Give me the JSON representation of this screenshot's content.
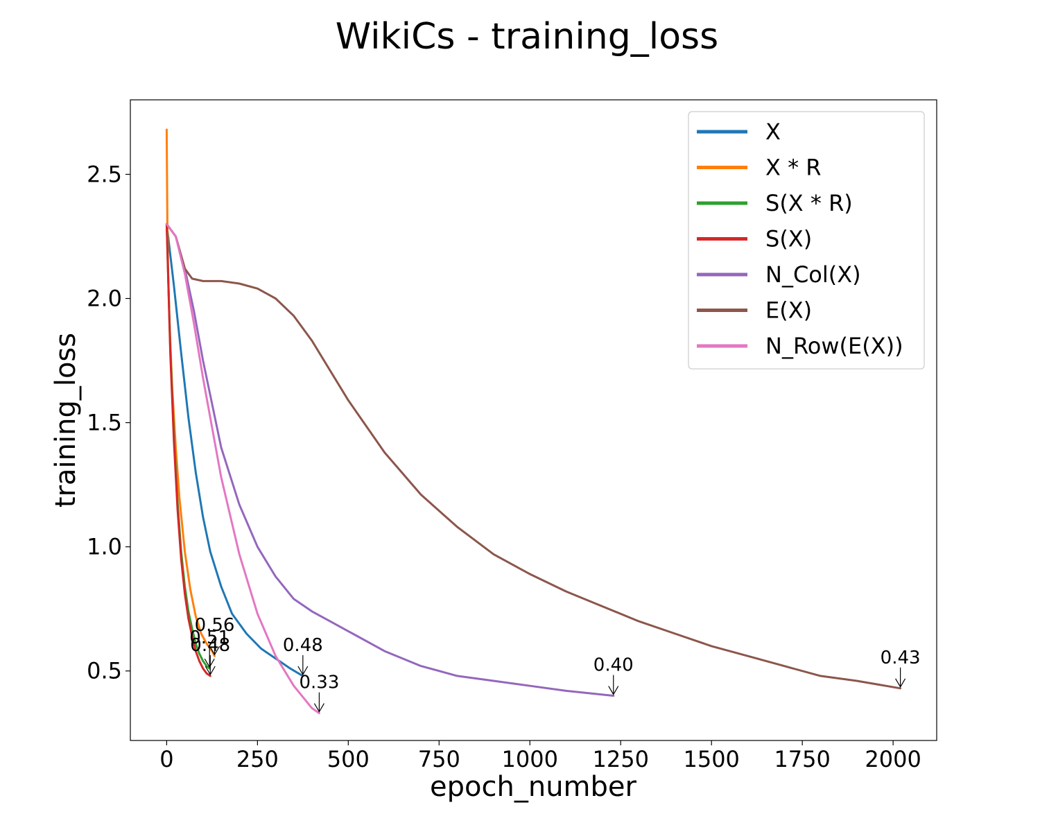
{
  "chart_data": {
    "type": "line",
    "title": "WikiCs - training_loss",
    "xlabel": "epoch_number",
    "ylabel": "training_loss",
    "xlim": [
      -100,
      2120
    ],
    "ylim": [
      0.22,
      2.8
    ],
    "xticks": [
      0,
      250,
      500,
      750,
      1000,
      1250,
      1500,
      1750,
      2000
    ],
    "xtick_labels": [
      "0",
      "250",
      "500",
      "750",
      "1000",
      "1250",
      "1500",
      "1750",
      "2000"
    ],
    "yticks": [
      0.5,
      1.0,
      1.5,
      2.0,
      2.5
    ],
    "ytick_labels": [
      "0.5",
      "1.0",
      "1.5",
      "2.0",
      "2.5"
    ],
    "grid": false,
    "legend_position": "upper right",
    "series": [
      {
        "name": "X",
        "color": "#1f77b4",
        "x": [
          0,
          20,
          40,
          60,
          80,
          100,
          120,
          150,
          180,
          220,
          260,
          300,
          340,
          375
        ],
        "y": [
          2.3,
          2.05,
          1.78,
          1.52,
          1.3,
          1.12,
          0.98,
          0.84,
          0.73,
          0.65,
          0.59,
          0.55,
          0.51,
          0.48
        ],
        "end_label": "0.48"
      },
      {
        "name": "X * R",
        "color": "#ff7f0e",
        "x": [
          0,
          2,
          4,
          8,
          15,
          25,
          35,
          50,
          65,
          80,
          95,
          110,
          125,
          132
        ],
        "y": [
          2.68,
          2.3,
          2.1,
          1.9,
          1.65,
          1.4,
          1.2,
          0.98,
          0.83,
          0.72,
          0.65,
          0.61,
          0.58,
          0.56
        ],
        "end_label": "0.56"
      },
      {
        "name": "S(X * R)",
        "color": "#2ca02c",
        "x": [
          0,
          10,
          20,
          30,
          40,
          50,
          60,
          70,
          80,
          90,
          100,
          110,
          118
        ],
        "y": [
          2.3,
          1.8,
          1.45,
          1.18,
          0.98,
          0.84,
          0.74,
          0.67,
          0.61,
          0.57,
          0.54,
          0.52,
          0.51
        ],
        "end_label": "0.51"
      },
      {
        "name": "S(X)",
        "color": "#d62728",
        "x": [
          0,
          10,
          20,
          30,
          40,
          50,
          60,
          70,
          80,
          90,
          100,
          110,
          120
        ],
        "y": [
          2.3,
          1.78,
          1.42,
          1.15,
          0.95,
          0.81,
          0.71,
          0.64,
          0.58,
          0.54,
          0.51,
          0.49,
          0.48
        ],
        "end_label": "0.48"
      },
      {
        "name": "N_Col(X)",
        "color": "#9467bd",
        "x": [
          0,
          25,
          50,
          75,
          100,
          150,
          200,
          250,
          300,
          350,
          400,
          450,
          500,
          600,
          700,
          800,
          900,
          1000,
          1100,
          1230
        ],
        "y": [
          2.3,
          2.25,
          2.12,
          1.95,
          1.75,
          1.4,
          1.17,
          1.0,
          0.88,
          0.79,
          0.74,
          0.7,
          0.66,
          0.58,
          0.52,
          0.48,
          0.46,
          0.44,
          0.42,
          0.4
        ],
        "end_label": "0.40"
      },
      {
        "name": "E(X)",
        "color": "#8c564b",
        "x": [
          0,
          25,
          50,
          70,
          100,
          150,
          200,
          250,
          300,
          350,
          400,
          450,
          500,
          600,
          700,
          800,
          900,
          1000,
          1100,
          1200,
          1300,
          1400,
          1500,
          1600,
          1700,
          1800,
          1900,
          2020
        ],
        "y": [
          2.3,
          2.25,
          2.12,
          2.08,
          2.07,
          2.07,
          2.06,
          2.04,
          2.0,
          1.93,
          1.83,
          1.71,
          1.59,
          1.38,
          1.21,
          1.08,
          0.97,
          0.89,
          0.82,
          0.76,
          0.7,
          0.65,
          0.6,
          0.56,
          0.52,
          0.48,
          0.46,
          0.43
        ],
        "end_label": "0.43"
      },
      {
        "name": "N_Row(E(X))",
        "color": "#e377c2",
        "x": [
          0,
          25,
          50,
          75,
          100,
          150,
          200,
          250,
          300,
          350,
          400,
          420
        ],
        "y": [
          2.3,
          2.25,
          2.1,
          1.9,
          1.68,
          1.28,
          0.97,
          0.73,
          0.56,
          0.44,
          0.35,
          0.33
        ],
        "end_label": "0.33"
      }
    ]
  }
}
